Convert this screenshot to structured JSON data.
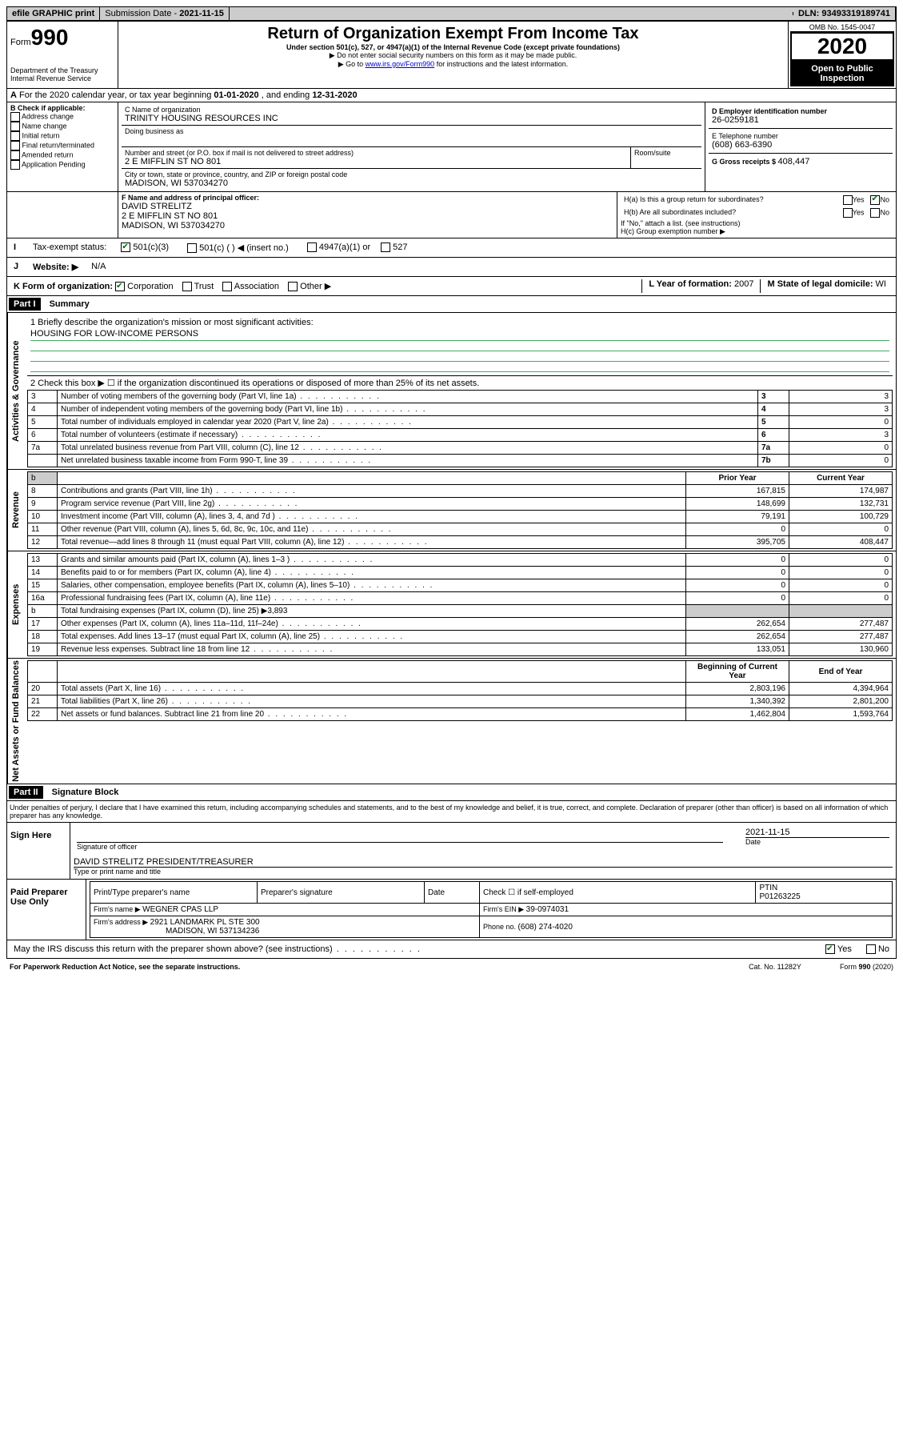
{
  "topbar": {
    "efile": "efile GRAPHIC print",
    "subdate_label": "Submission Date - ",
    "subdate": "2021-11-15",
    "dln_label": "DLN: ",
    "dln": "93493319189741"
  },
  "header": {
    "form_label": "Form",
    "form_num": "990",
    "dept": "Department of the Treasury\nInternal Revenue Service",
    "title": "Return of Organization Exempt From Income Tax",
    "subtitle": "Under section 501(c), 527, or 4947(a)(1) of the Internal Revenue Code (except private foundations)",
    "note1": "▶ Do not enter social security numbers on this form as it may be made public.",
    "note2_pre": "▶ Go to ",
    "note2_link": "www.irs.gov/Form990",
    "note2_post": " for instructions and the latest information.",
    "omb": "OMB No. 1545-0047",
    "year": "2020",
    "open": "Open to Public Inspection"
  },
  "A": {
    "line": "For the 2020 calendar year, or tax year beginning ",
    "beg": "01-01-2020",
    "mid": " , and ending ",
    "end": "12-31-2020"
  },
  "B": {
    "label": "B Check if applicable:",
    "addr": "Address change",
    "name": "Name change",
    "initial": "Initial return",
    "final": "Final return/terminated",
    "amended": "Amended return",
    "app": "Application Pending"
  },
  "C": {
    "label": "C Name of organization",
    "org": "TRINITY HOUSING RESOURCES INC",
    "dba_label": "Doing business as",
    "street_label": "Number and street (or P.O. box if mail is not delivered to street address)",
    "room_label": "Room/suite",
    "street": "2 E MIFFLIN ST NO 801",
    "city_label": "City or town, state or province, country, and ZIP or foreign postal code",
    "city": "MADISON, WI  537034270"
  },
  "D": {
    "label": "D Employer identification number",
    "val": "26-0259181"
  },
  "E": {
    "label": "E Telephone number",
    "val": "(608) 663-6390"
  },
  "G": {
    "label": "G Gross receipts $ ",
    "val": "408,447"
  },
  "F": {
    "label": "F  Name and address of principal officer:",
    "name": "DAVID STRELITZ",
    "addr1": "2 E MIFFLIN ST NO 801",
    "addr2": "MADISON, WI  537034270"
  },
  "H": {
    "a": "H(a)  Is this a group return for subordinates?",
    "b": "H(b)  Are all subordinates included?",
    "bnote": "If \"No,\" attach a list. (see instructions)",
    "c": "H(c)  Group exemption number ▶",
    "yes": "Yes",
    "no": "No"
  },
  "I": {
    "label": "Tax-exempt status:",
    "c3": "501(c)(3)",
    "c": "501(c) (  ) ◀ (insert no.)",
    "a1": "4947(a)(1) or",
    "s527": "527"
  },
  "J": {
    "label": "Website: ▶",
    "val": "N/A"
  },
  "K": {
    "label": "K Form of organization:",
    "corp": "Corporation",
    "trust": "Trust",
    "assoc": "Association",
    "other": "Other ▶"
  },
  "L": {
    "label": "L Year of formation: ",
    "val": "2007"
  },
  "M": {
    "label": "M State of legal domicile: ",
    "val": "WI"
  },
  "part1": {
    "hdr": "Part I",
    "title": "Summary",
    "q1": "1  Briefly describe the organization's mission or most significant activities:",
    "mission": "HOUSING FOR LOW-INCOME PERSONS",
    "q2": "2   Check this box ▶ ☐  if the organization discontinued its operations or disposed of more than 25% of its net assets.",
    "rows_gov": [
      {
        "n": "3",
        "t": "Number of voting members of the governing body (Part VI, line 1a)",
        "b": "3",
        "v": "3"
      },
      {
        "n": "4",
        "t": "Number of independent voting members of the governing body (Part VI, line 1b)",
        "b": "4",
        "v": "3"
      },
      {
        "n": "5",
        "t": "Total number of individuals employed in calendar year 2020 (Part V, line 2a)",
        "b": "5",
        "v": "0"
      },
      {
        "n": "6",
        "t": "Total number of volunteers (estimate if necessary)",
        "b": "6",
        "v": "3"
      },
      {
        "n": "7a",
        "t": "Total unrelated business revenue from Part VIII, column (C), line 12",
        "b": "7a",
        "v": "0"
      },
      {
        "n": "",
        "t": "Net unrelated business taxable income from Form 990-T, line 39",
        "b": "7b",
        "v": "0"
      }
    ],
    "py": "Prior Year",
    "cy": "Current Year",
    "rev": [
      {
        "n": "8",
        "t": "Contributions and grants (Part VIII, line 1h)",
        "p": "167,815",
        "c": "174,987"
      },
      {
        "n": "9",
        "t": "Program service revenue (Part VIII, line 2g)",
        "p": "148,699",
        "c": "132,731"
      },
      {
        "n": "10",
        "t": "Investment income (Part VIII, column (A), lines 3, 4, and 7d )",
        "p": "79,191",
        "c": "100,729"
      },
      {
        "n": "11",
        "t": "Other revenue (Part VIII, column (A), lines 5, 6d, 8c, 9c, 10c, and 11e)",
        "p": "0",
        "c": "0"
      },
      {
        "n": "12",
        "t": "Total revenue—add lines 8 through 11 (must equal Part VIII, column (A), line 12)",
        "p": "395,705",
        "c": "408,447"
      }
    ],
    "exp": [
      {
        "n": "13",
        "t": "Grants and similar amounts paid (Part IX, column (A), lines 1–3 )",
        "p": "0",
        "c": "0"
      },
      {
        "n": "14",
        "t": "Benefits paid to or for members (Part IX, column (A), line 4)",
        "p": "0",
        "c": "0"
      },
      {
        "n": "15",
        "t": "Salaries, other compensation, employee benefits (Part IX, column (A), lines 5–10)",
        "p": "0",
        "c": "0"
      },
      {
        "n": "16a",
        "t": "Professional fundraising fees (Part IX, column (A), line 11e)",
        "p": "0",
        "c": "0"
      }
    ],
    "exp_b": {
      "n": "b",
      "t": "Total fundraising expenses (Part IX, column (D), line 25) ▶",
      "v": "3,893"
    },
    "exp2": [
      {
        "n": "17",
        "t": "Other expenses (Part IX, column (A), lines 11a–11d, 11f–24e)",
        "p": "262,654",
        "c": "277,487"
      },
      {
        "n": "18",
        "t": "Total expenses. Add lines 13–17 (must equal Part IX, column (A), line 25)",
        "p": "262,654",
        "c": "277,487"
      },
      {
        "n": "19",
        "t": "Revenue less expenses. Subtract line 18 from line 12",
        "p": "133,051",
        "c": "130,960"
      }
    ],
    "boy": "Beginning of Current Year",
    "eoy": "End of Year",
    "net": [
      {
        "n": "20",
        "t": "Total assets (Part X, line 16)",
        "p": "2,803,196",
        "c": "4,394,964"
      },
      {
        "n": "21",
        "t": "Total liabilities (Part X, line 26)",
        "p": "1,340,392",
        "c": "2,801,200"
      },
      {
        "n": "22",
        "t": "Net assets or fund balances. Subtract line 21 from line 20",
        "p": "1,462,804",
        "c": "1,593,764"
      }
    ],
    "vert_gov": "Activities & Governance",
    "vert_rev": "Revenue",
    "vert_exp": "Expenses",
    "vert_net": "Net Assets or Fund Balances",
    "b_col": "b"
  },
  "part2": {
    "hdr": "Part II",
    "title": "Signature Block",
    "decl": "Under penalties of perjury, I declare that I have examined this return, including accompanying schedules and statements, and to the best of my knowledge and belief, it is true, correct, and complete. Declaration of preparer (other than officer) is based on all information of which preparer has any knowledge.",
    "sign_here": "Sign Here",
    "sig_officer": "Signature of officer",
    "date_label": "Date",
    "sig_date": "2021-11-15",
    "officer_name": "DAVID STRELITZ  PRESIDENT/TREASURER",
    "type_label": "Type or print name and title",
    "paid": "Paid Preparer Use Only",
    "prep_name_label": "Print/Type preparer's name",
    "prep_sig_label": "Preparer's signature",
    "check_self": "Check ☐ if self-employed",
    "ptin_label": "PTIN",
    "ptin": "P01263225",
    "firm_name_label": "Firm's name    ▶ ",
    "firm_name": "WEGNER CPAS LLP",
    "firm_ein_label": "Firm's EIN ▶ ",
    "firm_ein": "39-0974031",
    "firm_addr_label": "Firm's address ▶ ",
    "firm_addr1": "2921 LANDMARK PL STE 300",
    "firm_addr2": "MADISON, WI  537134236",
    "phone_label": "Phone no. ",
    "phone": "(608) 274-4020",
    "discuss": "May the IRS discuss this return with the preparer shown above? (see instructions)",
    "yes": "Yes",
    "no": "No"
  },
  "footer": {
    "pra": "For Paperwork Reduction Act Notice, see the separate instructions.",
    "cat": "Cat. No. 11282Y",
    "form": "Form 990 (2020)"
  }
}
